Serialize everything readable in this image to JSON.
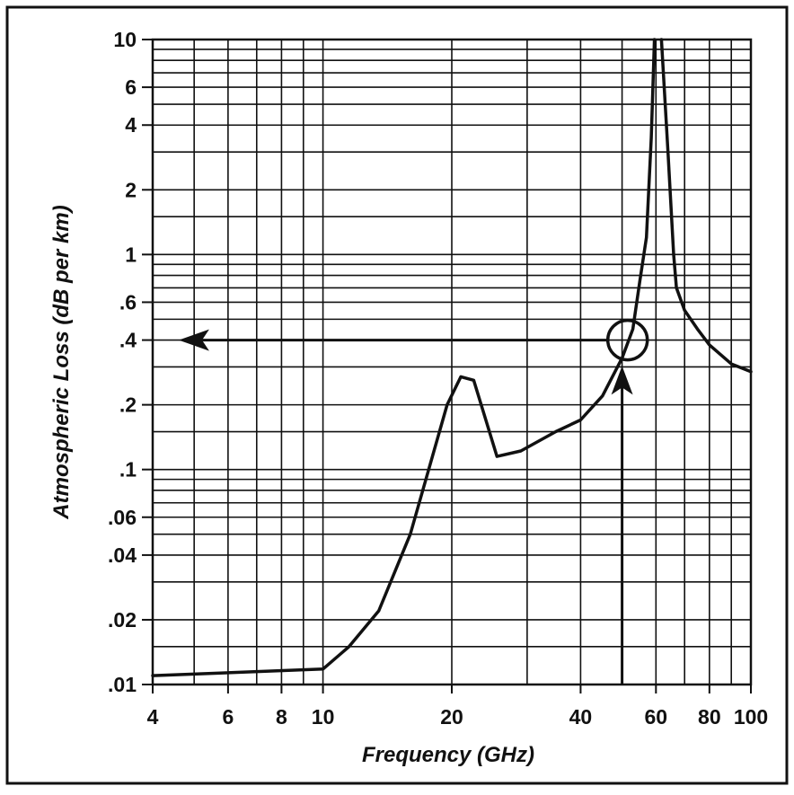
{
  "chart_data": {
    "type": "line",
    "title": "",
    "xlabel": "Frequency (GHz)",
    "ylabel": "Atmospheric Loss (dB per km)",
    "x_scale": "log",
    "y_scale": "log",
    "xlim": [
      4,
      100
    ],
    "ylim": [
      0.01,
      10
    ],
    "grid": true,
    "legend": "none",
    "x_ticks": [
      {
        "value": 4,
        "label": "4"
      },
      {
        "value": 6,
        "label": "6"
      },
      {
        "value": 8,
        "label": "8"
      },
      {
        "value": 10,
        "label": "10"
      },
      {
        "value": 20,
        "label": "20"
      },
      {
        "value": 40,
        "label": "40"
      },
      {
        "value": 60,
        "label": "60"
      },
      {
        "value": 80,
        "label": "80"
      },
      {
        "value": 100,
        "label": "100"
      }
    ],
    "y_ticks": [
      {
        "value": 10,
        "label": "10"
      },
      {
        "value": 6,
        "label": "6"
      },
      {
        "value": 4,
        "label": "4"
      },
      {
        "value": 2,
        "label": "2"
      },
      {
        "value": 1,
        "label": "1"
      },
      {
        "value": 0.6,
        "label": ".6"
      },
      {
        "value": 0.4,
        "label": ".4"
      },
      {
        "value": 0.2,
        "label": ".2"
      },
      {
        "value": 0.1,
        "label": ".1"
      },
      {
        "value": 0.06,
        "label": ".06"
      },
      {
        "value": 0.04,
        "label": ".04"
      },
      {
        "value": 0.02,
        "label": ".02"
      },
      {
        "value": 0.01,
        "label": ".01"
      }
    ],
    "x_grid": [
      4,
      5,
      6,
      7,
      8,
      9,
      10,
      20,
      30,
      40,
      50,
      60,
      70,
      80,
      90,
      100
    ],
    "y_grid": [
      0.01,
      0.015,
      0.02,
      0.03,
      0.04,
      0.05,
      0.06,
      0.07,
      0.08,
      0.09,
      0.1,
      0.15,
      0.2,
      0.3,
      0.4,
      0.5,
      0.6,
      0.7,
      0.8,
      0.9,
      1,
      1.5,
      2,
      3,
      4,
      5,
      6,
      7,
      8,
      9,
      10
    ],
    "series": [
      {
        "values_left": [
          [
            4,
            0.011
          ],
          [
            10,
            0.0118
          ],
          [
            11.5,
            0.015
          ],
          [
            13.5,
            0.022
          ],
          [
            16,
            0.05
          ],
          [
            19.5,
            0.2
          ],
          [
            21,
            0.27
          ],
          [
            22.5,
            0.26
          ],
          [
            25.5,
            0.115
          ],
          [
            29,
            0.122
          ],
          [
            35,
            0.15
          ],
          [
            40,
            0.17
          ],
          [
            45,
            0.22
          ],
          [
            50,
            0.33
          ],
          [
            53,
            0.45
          ],
          [
            55,
            0.75
          ],
          [
            57,
            1.2
          ],
          [
            58.5,
            3.5
          ],
          [
            59.5,
            10
          ]
        ],
        "values_right": [
          [
            61.8,
            10
          ],
          [
            64,
            3
          ],
          [
            66,
            1.0
          ],
          [
            67,
            0.7
          ],
          [
            70,
            0.55
          ],
          [
            75,
            0.45
          ],
          [
            80,
            0.38
          ],
          [
            90,
            0.31
          ],
          [
            100,
            0.285
          ]
        ]
      }
    ],
    "annotation": {
      "point": [
        51.5,
        0.4
      ],
      "circle_radius_ghz_factor": true,
      "arrow_left_to_x": 4.6,
      "arrow_up_from_y": 0.01,
      "arrow_up_to_y": 0.27
    }
  }
}
